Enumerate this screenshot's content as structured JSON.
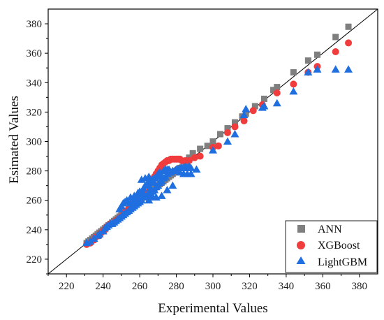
{
  "chart_data": {
    "type": "scatter",
    "title": "",
    "xlabel": "Experimental Values",
    "ylabel": "Esimated Values",
    "xlim": [
      210,
      390
    ],
    "ylim": [
      210,
      390
    ],
    "xticks": [
      220,
      240,
      260,
      280,
      300,
      320,
      340,
      360,
      380
    ],
    "yticks": [
      220,
      240,
      260,
      280,
      300,
      320,
      340,
      360,
      380
    ],
    "grid": false,
    "legend_position": "bottom-right",
    "reference_line": "y = x",
    "series": [
      {
        "name": "ANN",
        "marker": "square",
        "color": "#7f7f7f",
        "points": [
          [
            231,
            231
          ],
          [
            232,
            232
          ],
          [
            233,
            233
          ],
          [
            234,
            234
          ],
          [
            235,
            235
          ],
          [
            236,
            236
          ],
          [
            237,
            237
          ],
          [
            238,
            238
          ],
          [
            239,
            239
          ],
          [
            240,
            240
          ],
          [
            241,
            241
          ],
          [
            242,
            242
          ],
          [
            243,
            243
          ],
          [
            244,
            244
          ],
          [
            245,
            245
          ],
          [
            246,
            246
          ],
          [
            247,
            247
          ],
          [
            248,
            248
          ],
          [
            249,
            249
          ],
          [
            250,
            250
          ],
          [
            251,
            251
          ],
          [
            252,
            252
          ],
          [
            253,
            253
          ],
          [
            254,
            254
          ],
          [
            255,
            255
          ],
          [
            256,
            256
          ],
          [
            257,
            257
          ],
          [
            258,
            258
          ],
          [
            259,
            259
          ],
          [
            260,
            260
          ],
          [
            261,
            261
          ],
          [
            262,
            262
          ],
          [
            263,
            263
          ],
          [
            264,
            264
          ],
          [
            265,
            265
          ],
          [
            266,
            266
          ],
          [
            267,
            267
          ],
          [
            268,
            268
          ],
          [
            269,
            269
          ],
          [
            270,
            270
          ],
          [
            271,
            271
          ],
          [
            272,
            272
          ],
          [
            273,
            273
          ],
          [
            274,
            274
          ],
          [
            275,
            275
          ],
          [
            276,
            276
          ],
          [
            277,
            277
          ],
          [
            278,
            278
          ],
          [
            279,
            279
          ],
          [
            280,
            280
          ],
          [
            281,
            281
          ],
          [
            282,
            282
          ],
          [
            284,
            283
          ],
          [
            285,
            285
          ],
          [
            287,
            289
          ],
          [
            289,
            292
          ],
          [
            293,
            295
          ],
          [
            297,
            297
          ],
          [
            300,
            300
          ],
          [
            304,
            305
          ],
          [
            308,
            309
          ],
          [
            312,
            313
          ],
          [
            316,
            317
          ],
          [
            318,
            319
          ],
          [
            323,
            324
          ],
          [
            328,
            329
          ],
          [
            333,
            335
          ],
          [
            335,
            337
          ],
          [
            344,
            347
          ],
          [
            352,
            355
          ],
          [
            357,
            359
          ],
          [
            367,
            371
          ],
          [
            374,
            378
          ]
        ]
      },
      {
        "name": "XGBoost",
        "marker": "circle",
        "color": "#f03c3c",
        "points": [
          [
            231,
            230
          ],
          [
            233,
            231
          ],
          [
            235,
            233
          ],
          [
            236,
            235
          ],
          [
            238,
            236
          ],
          [
            239,
            238
          ],
          [
            240,
            239
          ],
          [
            241,
            240
          ],
          [
            242,
            242
          ],
          [
            243,
            243
          ],
          [
            244,
            244
          ],
          [
            246,
            245
          ],
          [
            247,
            246
          ],
          [
            248,
            247
          ],
          [
            249,
            248
          ],
          [
            250,
            249
          ],
          [
            251,
            250
          ],
          [
            252,
            252
          ],
          [
            253,
            253
          ],
          [
            254,
            254
          ],
          [
            255,
            255
          ],
          [
            256,
            256
          ],
          [
            257,
            257
          ],
          [
            258,
            258
          ],
          [
            259,
            259
          ],
          [
            260,
            260
          ],
          [
            261,
            261
          ],
          [
            262,
            262
          ],
          [
            263,
            263
          ],
          [
            264,
            264
          ],
          [
            265,
            266
          ],
          [
            266,
            272
          ],
          [
            267,
            274
          ],
          [
            268,
            276
          ],
          [
            269,
            278
          ],
          [
            270,
            280
          ],
          [
            271,
            282
          ],
          [
            272,
            284
          ],
          [
            273,
            285
          ],
          [
            274,
            286
          ],
          [
            275,
            287
          ],
          [
            276,
            287
          ],
          [
            277,
            288
          ],
          [
            278,
            288
          ],
          [
            279,
            288
          ],
          [
            280,
            288
          ],
          [
            281,
            288
          ],
          [
            282,
            288
          ],
          [
            283,
            287
          ],
          [
            285,
            287
          ],
          [
            287,
            287
          ],
          [
            290,
            289
          ],
          [
            293,
            290
          ],
          [
            300,
            296
          ],
          [
            303,
            297
          ],
          [
            308,
            306
          ],
          [
            312,
            310
          ],
          [
            317,
            314
          ],
          [
            322,
            321
          ],
          [
            327,
            325
          ],
          [
            335,
            333
          ],
          [
            344,
            339
          ],
          [
            352,
            347
          ],
          [
            357,
            351
          ],
          [
            367,
            361
          ],
          [
            374,
            367
          ]
        ]
      },
      {
        "name": "LightGBM",
        "marker": "triangle",
        "color": "#1f6fe0",
        "points": [
          [
            231,
            231
          ],
          [
            233,
            232
          ],
          [
            235,
            234
          ],
          [
            237,
            236
          ],
          [
            238,
            237
          ],
          [
            240,
            239
          ],
          [
            241,
            241
          ],
          [
            242,
            242
          ],
          [
            243,
            243
          ],
          [
            244,
            244
          ],
          [
            245,
            244
          ],
          [
            246,
            245
          ],
          [
            247,
            246
          ],
          [
            248,
            247
          ],
          [
            249,
            248
          ],
          [
            250,
            249
          ],
          [
            251,
            250
          ],
          [
            252,
            251
          ],
          [
            253,
            252
          ],
          [
            254,
            253
          ],
          [
            255,
            254
          ],
          [
            256,
            255
          ],
          [
            257,
            256
          ],
          [
            258,
            257
          ],
          [
            259,
            258
          ],
          [
            260,
            259
          ],
          [
            261,
            260
          ],
          [
            262,
            262
          ],
          [
            263,
            262
          ],
          [
            264,
            263
          ],
          [
            265,
            264
          ],
          [
            266,
            265
          ],
          [
            267,
            266
          ],
          [
            268,
            267
          ],
          [
            269,
            269
          ],
          [
            270,
            270
          ],
          [
            271,
            272
          ],
          [
            272,
            273
          ],
          [
            273,
            275
          ],
          [
            274,
            276
          ],
          [
            275,
            278
          ],
          [
            276,
            279
          ],
          [
            277,
            279
          ],
          [
            278,
            280
          ],
          [
            279,
            280
          ],
          [
            280,
            281
          ],
          [
            281,
            281
          ],
          [
            282,
            282
          ],
          [
            283,
            282
          ],
          [
            284,
            282
          ],
          [
            285,
            283
          ],
          [
            286,
            282
          ],
          [
            287,
            283
          ],
          [
            288,
            282
          ],
          [
            249,
            254
          ],
          [
            250,
            256
          ],
          [
            251,
            258
          ],
          [
            252,
            259
          ],
          [
            253,
            260
          ],
          [
            255,
            262
          ],
          [
            257,
            263
          ],
          [
            259,
            265
          ],
          [
            260,
            266
          ],
          [
            262,
            268
          ],
          [
            263,
            270
          ],
          [
            264,
            271
          ],
          [
            265,
            272
          ],
          [
            266,
            273
          ],
          [
            267,
            274
          ],
          [
            268,
            275
          ],
          [
            269,
            276
          ],
          [
            270,
            278
          ],
          [
            271,
            279
          ],
          [
            273,
            280
          ],
          [
            274,
            281
          ],
          [
            275,
            281
          ],
          [
            276,
            281
          ],
          [
            261,
            274
          ],
          [
            263,
            275
          ],
          [
            265,
            276
          ],
          [
            264,
            270
          ],
          [
            266,
            268
          ],
          [
            268,
            272
          ],
          [
            270,
            276
          ],
          [
            255,
            258
          ],
          [
            257,
            260
          ],
          [
            259,
            262
          ],
          [
            261,
            264
          ],
          [
            258,
            262
          ],
          [
            260,
            263
          ],
          [
            262,
            265
          ],
          [
            268,
            272
          ],
          [
            272,
            275
          ],
          [
            265,
            260
          ],
          [
            267,
            262
          ],
          [
            269,
            262
          ],
          [
            272,
            263
          ],
          [
            275,
            267
          ],
          [
            278,
            270
          ],
          [
            282,
            279
          ],
          [
            284,
            278
          ],
          [
            286,
            278
          ],
          [
            288,
            278
          ],
          [
            291,
            281
          ],
          [
            300,
            294
          ],
          [
            308,
            300
          ],
          [
            312,
            305
          ],
          [
            317,
            318
          ],
          [
            318,
            322
          ],
          [
            327,
            323
          ],
          [
            328,
            324
          ],
          [
            335,
            326
          ],
          [
            344,
            334
          ],
          [
            352,
            347
          ],
          [
            357,
            349
          ],
          [
            367,
            349
          ],
          [
            374,
            349
          ]
        ]
      }
    ]
  }
}
